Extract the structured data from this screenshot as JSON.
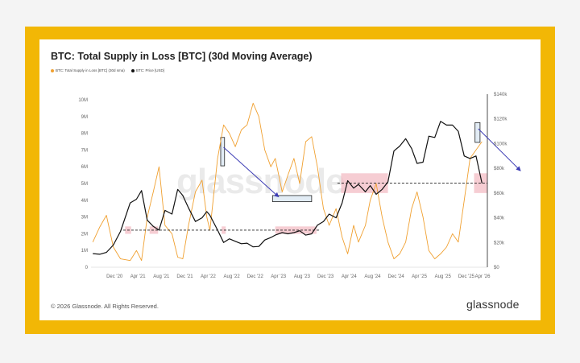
{
  "chart_data": {
    "type": "line",
    "title": "BTC: Total Supply in Loss [BTC] (30d Moving Average)",
    "legend_placement": "top-left",
    "grid": false,
    "x_ticks": [
      "Dec '20",
      "Apr '21",
      "Aug '21",
      "Dec '21",
      "Apr '22",
      "Aug '22",
      "Dec '22",
      "Apr '23",
      "Aug '23",
      "Dec '23",
      "Apr '24",
      "Aug '24",
      "Dec '24",
      "Apr '25",
      "Aug '25",
      "Dec '25",
      "Apr '26"
    ],
    "y_left": {
      "ticks": [
        "0",
        "1M",
        "2M",
        "3M",
        "4M",
        "5M",
        "6M",
        "7M",
        "8M",
        "9M",
        "10M"
      ],
      "lim": [
        0,
        10000000
      ]
    },
    "y_right": {
      "ticks": [
        "$0",
        "$20k",
        "$40k",
        "$60k",
        "$80k",
        "$100k",
        "$120k",
        "$140k"
      ],
      "lim": [
        0,
        140000
      ]
    },
    "series": [
      {
        "name": "BTC: Total Supply in Loss [BTC] (30d sma)",
        "axis": "left",
        "color": "#f0a030",
        "points": [
          [
            "2020-08-10",
            1500000
          ],
          [
            "2020-09-15",
            2400000
          ],
          [
            "2020-10-20",
            3100000
          ],
          [
            "2020-11-25",
            1200000
          ],
          [
            "2021-01-01",
            500000
          ],
          [
            "2021-02-20",
            400000
          ],
          [
            "2021-03-25",
            1000000
          ],
          [
            "2021-04-20",
            400000
          ],
          [
            "2021-05-20",
            3000000
          ],
          [
            "2021-06-20",
            4500000
          ],
          [
            "2021-07-20",
            6000000
          ],
          [
            "2021-08-20",
            2500000
          ],
          [
            "2021-09-25",
            2000000
          ],
          [
            "2021-10-25",
            600000
          ],
          [
            "2021-11-20",
            500000
          ],
          [
            "2021-12-20",
            2500000
          ],
          [
            "2022-01-25",
            4500000
          ],
          [
            "2022-02-28",
            5200000
          ],
          [
            "2022-03-25",
            3000000
          ],
          [
            "2022-04-10",
            2200000
          ],
          [
            "2022-05-20",
            6500000
          ],
          [
            "2022-06-20",
            8500000
          ],
          [
            "2022-07-20",
            8000000
          ],
          [
            "2022-08-20",
            7200000
          ],
          [
            "2022-09-20",
            8200000
          ],
          [
            "2022-10-20",
            8500000
          ],
          [
            "2022-11-20",
            9800000
          ],
          [
            "2022-12-20",
            9000000
          ],
          [
            "2023-01-20",
            7000000
          ],
          [
            "2023-02-20",
            6000000
          ],
          [
            "2023-03-15",
            6500000
          ],
          [
            "2023-04-20",
            4500000
          ],
          [
            "2023-05-20",
            5500000
          ],
          [
            "2023-06-20",
            6500000
          ],
          [
            "2023-07-20",
            5000000
          ],
          [
            "2023-08-20",
            7500000
          ],
          [
            "2023-09-20",
            7800000
          ],
          [
            "2023-10-20",
            6000000
          ],
          [
            "2023-11-20",
            3500000
          ],
          [
            "2023-12-20",
            2500000
          ],
          [
            "2024-01-25",
            3500000
          ],
          [
            "2024-02-25",
            1800000
          ],
          [
            "2024-03-25",
            800000
          ],
          [
            "2024-04-25",
            2500000
          ],
          [
            "2024-05-20",
            1500000
          ],
          [
            "2024-06-25",
            2500000
          ],
          [
            "2024-07-20",
            4000000
          ],
          [
            "2024-08-20",
            5000000
          ],
          [
            "2024-09-20",
            3000000
          ],
          [
            "2024-10-20",
            1500000
          ],
          [
            "2024-11-20",
            500000
          ],
          [
            "2024-12-20",
            800000
          ],
          [
            "2025-01-20",
            1500000
          ],
          [
            "2025-02-20",
            3500000
          ],
          [
            "2025-03-20",
            4500000
          ],
          [
            "2025-04-20",
            3000000
          ],
          [
            "2025-05-20",
            1000000
          ],
          [
            "2025-06-20",
            500000
          ],
          [
            "2025-07-20",
            800000
          ],
          [
            "2025-08-20",
            1200000
          ],
          [
            "2025-09-20",
            2000000
          ],
          [
            "2025-10-20",
            1500000
          ],
          [
            "2025-11-20",
            4000000
          ],
          [
            "2025-12-20",
            6500000
          ],
          [
            "2026-01-20",
            7000000
          ],
          [
            "2026-02-20",
            7500000
          ]
        ]
      },
      {
        "name": "BTC: Price [USD]",
        "axis": "right",
        "color": "#111111",
        "points": [
          [
            "2020-08-10",
            11000
          ],
          [
            "2020-09-15",
            10500
          ],
          [
            "2020-10-20",
            12000
          ],
          [
            "2020-11-25",
            18000
          ],
          [
            "2021-01-01",
            29000
          ],
          [
            "2021-02-20",
            52000
          ],
          [
            "2021-03-25",
            55000
          ],
          [
            "2021-04-20",
            62000
          ],
          [
            "2021-05-20",
            38000
          ],
          [
            "2021-06-20",
            33000
          ],
          [
            "2021-07-20",
            30000
          ],
          [
            "2021-08-20",
            46000
          ],
          [
            "2021-09-25",
            43000
          ],
          [
            "2021-10-25",
            63000
          ],
          [
            "2021-11-20",
            58000
          ],
          [
            "2021-12-20",
            48000
          ],
          [
            "2022-01-25",
            37000
          ],
          [
            "2022-02-28",
            40000
          ],
          [
            "2022-03-25",
            45000
          ],
          [
            "2022-04-10",
            42000
          ],
          [
            "2022-05-20",
            30000
          ],
          [
            "2022-06-20",
            20000
          ],
          [
            "2022-07-20",
            23000
          ],
          [
            "2022-08-20",
            21000
          ],
          [
            "2022-09-20",
            19000
          ],
          [
            "2022-10-20",
            19500
          ],
          [
            "2022-11-20",
            16500
          ],
          [
            "2022-12-20",
            16800
          ],
          [
            "2023-01-20",
            22000
          ],
          [
            "2023-02-20",
            24000
          ],
          [
            "2023-03-15",
            26000
          ],
          [
            "2023-04-20",
            28000
          ],
          [
            "2023-05-20",
            27000
          ],
          [
            "2023-06-20",
            28000
          ],
          [
            "2023-07-20",
            29500
          ],
          [
            "2023-08-20",
            26000
          ],
          [
            "2023-09-20",
            27000
          ],
          [
            "2023-10-20",
            34000
          ],
          [
            "2023-11-20",
            37000
          ],
          [
            "2023-12-20",
            43000
          ],
          [
            "2024-01-25",
            40000
          ],
          [
            "2024-02-25",
            52000
          ],
          [
            "2024-03-25",
            70000
          ],
          [
            "2024-04-25",
            64000
          ],
          [
            "2024-05-20",
            67000
          ],
          [
            "2024-06-25",
            61000
          ],
          [
            "2024-07-20",
            66000
          ],
          [
            "2024-08-20",
            59000
          ],
          [
            "2024-09-20",
            63000
          ],
          [
            "2024-10-20",
            69000
          ],
          [
            "2024-11-20",
            94000
          ],
          [
            "2024-12-20",
            98000
          ],
          [
            "2025-01-20",
            104000
          ],
          [
            "2025-02-20",
            96000
          ],
          [
            "2025-03-20",
            84000
          ],
          [
            "2025-04-20",
            85000
          ],
          [
            "2025-05-20",
            106000
          ],
          [
            "2025-06-20",
            105000
          ],
          [
            "2025-07-20",
            118000
          ],
          [
            "2025-08-20",
            115000
          ],
          [
            "2025-09-20",
            115000
          ],
          [
            "2025-10-20",
            110000
          ],
          [
            "2025-11-20",
            90000
          ],
          [
            "2025-12-20",
            88000
          ],
          [
            "2026-01-20",
            90000
          ],
          [
            "2026-02-20",
            68000
          ]
        ]
      }
    ],
    "annotations": {
      "reference_lines_price_usd": [
        30000,
        68000
      ],
      "pink_box_date_ranges": [
        [
          "2021-01-25",
          "2021-02-25"
        ],
        [
          "2021-06-01",
          "2021-07-15"
        ],
        [
          "2022-06-10",
          "2022-07-01"
        ],
        [
          "2023-03-15",
          "2023-10-15"
        ],
        [
          "2024-02-20",
          "2024-10-20"
        ],
        [
          "2026-01-10",
          "2026-03-20"
        ]
      ],
      "blue_box_date_ranges": [
        [
          "2022-06-05",
          "2022-06-25"
        ],
        [
          "2023-03-01",
          "2023-09-20"
        ],
        [
          "2026-01-15",
          "2026-02-10"
        ]
      ]
    }
  },
  "colors": {
    "frame": "#f2b705",
    "supply_in_loss": "#f0a030",
    "price": "#111111",
    "annotation_arrow": "#3d3db5",
    "loss_box": "#f2b8c0",
    "highlight_box": "#7aa7cc"
  },
  "legend": {
    "supply": "BTC: Total Supply in Loss [BTC] (30d sma)",
    "price": "BTC: Price [USD]"
  },
  "footer": {
    "copyright": "© 2026 Glassnode. All Rights Reserved.",
    "brand": "glassnode"
  },
  "watermark": "glassnode"
}
